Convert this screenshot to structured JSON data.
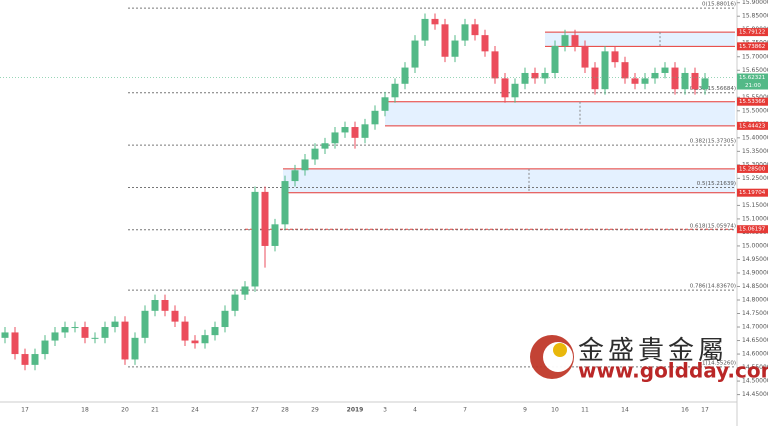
{
  "chart_data": {
    "type": "candlestick",
    "categories": [
      null,
      null,
      "17",
      null,
      null,
      null,
      null,
      null,
      "18",
      null,
      null,
      null,
      "20",
      null,
      null,
      "21",
      null,
      null,
      null,
      "24",
      null,
      null,
      null,
      null,
      null,
      "27",
      null,
      null,
      "28",
      null,
      null,
      "29",
      null,
      null,
      null,
      "2019",
      null,
      null,
      "3",
      null,
      null,
      "4",
      null,
      null,
      null,
      null,
      "7",
      null,
      null,
      null,
      null,
      null,
      "9",
      null,
      null,
      "10",
      null,
      null,
      "11",
      null,
      null,
      null,
      "14",
      null,
      null,
      null,
      null,
      null,
      "16",
      null,
      "17"
    ],
    "open": [
      14.66,
      14.68,
      14.6,
      14.56,
      14.6,
      14.65,
      14.68,
      14.7,
      14.7,
      14.66,
      14.66,
      14.7,
      14.72,
      14.58,
      14.66,
      14.76,
      14.8,
      14.76,
      14.72,
      14.65,
      14.64,
      14.67,
      14.7,
      14.76,
      14.82,
      14.85,
      15.2,
      15.0,
      15.08,
      15.24,
      15.28,
      15.32,
      15.36,
      15.38,
      15.42,
      15.44,
      15.4,
      15.45,
      15.5,
      15.55,
      15.6,
      15.66,
      15.76,
      15.84,
      15.82,
      15.7,
      15.76,
      15.82,
      15.78,
      15.72,
      15.62,
      15.55,
      15.6,
      15.64,
      15.62,
      15.64,
      15.74,
      15.78,
      15.74,
      15.66,
      15.58,
      15.72,
      15.68,
      15.62,
      15.6,
      15.62,
      15.64,
      15.66,
      15.58,
      15.64,
      15.58
    ],
    "high": [
      14.7,
      14.7,
      14.62,
      14.62,
      14.67,
      14.7,
      14.72,
      14.72,
      14.72,
      14.68,
      14.72,
      14.74,
      14.74,
      14.68,
      14.78,
      14.82,
      14.82,
      14.78,
      14.74,
      14.67,
      14.69,
      14.72,
      14.78,
      14.84,
      14.87,
      15.22,
      15.22,
      15.1,
      15.26,
      15.3,
      15.34,
      15.38,
      15.4,
      15.44,
      15.46,
      15.46,
      15.47,
      15.52,
      15.57,
      15.62,
      15.68,
      15.78,
      15.86,
      15.86,
      15.84,
      15.78,
      15.84,
      15.84,
      15.8,
      15.74,
      15.64,
      15.62,
      15.66,
      15.66,
      15.66,
      15.76,
      15.8,
      15.8,
      15.76,
      15.68,
      15.74,
      15.74,
      15.7,
      15.64,
      15.64,
      15.66,
      15.68,
      15.68,
      15.66,
      15.66,
      15.64
    ],
    "low": [
      14.64,
      14.58,
      14.54,
      14.54,
      14.58,
      14.63,
      14.66,
      14.68,
      14.64,
      14.64,
      14.64,
      14.68,
      14.56,
      14.56,
      14.64,
      14.74,
      14.74,
      14.7,
      14.63,
      14.62,
      14.62,
      14.65,
      14.68,
      14.74,
      14.8,
      14.83,
      14.92,
      14.98,
      15.06,
      15.22,
      15.26,
      15.3,
      15.34,
      15.36,
      15.4,
      15.36,
      15.38,
      15.43,
      15.48,
      15.53,
      15.58,
      15.64,
      15.74,
      15.8,
      15.68,
      15.68,
      15.74,
      15.76,
      15.7,
      15.6,
      15.53,
      15.53,
      15.58,
      15.6,
      15.6,
      15.62,
      15.72,
      15.72,
      15.64,
      15.56,
      15.56,
      15.66,
      15.6,
      15.58,
      15.58,
      15.6,
      15.62,
      15.56,
      15.56,
      15.56,
      15.56
    ],
    "close": [
      14.68,
      14.6,
      14.56,
      14.6,
      14.65,
      14.68,
      14.7,
      14.7,
      14.66,
      14.66,
      14.7,
      14.72,
      14.58,
      14.66,
      14.76,
      14.8,
      14.76,
      14.72,
      14.65,
      14.64,
      14.67,
      14.7,
      14.76,
      14.82,
      14.85,
      15.2,
      15.0,
      15.08,
      15.24,
      15.28,
      15.32,
      15.36,
      15.38,
      15.42,
      15.44,
      15.4,
      15.45,
      15.5,
      15.55,
      15.6,
      15.66,
      15.76,
      15.84,
      15.82,
      15.7,
      15.76,
      15.82,
      15.78,
      15.72,
      15.62,
      15.55,
      15.6,
      15.64,
      15.62,
      15.64,
      15.74,
      15.78,
      15.74,
      15.66,
      15.58,
      15.72,
      15.68,
      15.62,
      15.6,
      15.62,
      15.64,
      15.66,
      15.58,
      15.64,
      15.58,
      15.62
    ],
    "up_color": "#53b987",
    "down_color": "#eb4d5c",
    "ylim": [
      14.43,
      15.91
    ],
    "yticks": [
      {
        "value": 15.9,
        "label": "15.90000"
      },
      {
        "value": 15.85,
        "label": "15.85000"
      },
      {
        "value": 15.8,
        "label": "15.80000"
      },
      {
        "value": 15.75,
        "label": "15.75000"
      },
      {
        "value": 15.7,
        "label": "15.70000"
      },
      {
        "value": 15.65,
        "label": "15.65000"
      },
      {
        "value": 15.6,
        "label": "15.60000"
      },
      {
        "value": 15.55,
        "label": "15.55000"
      },
      {
        "value": 15.5,
        "label": "15.50000"
      },
      {
        "value": 15.45,
        "label": "15.45000"
      },
      {
        "value": 15.4,
        "label": "15.40000"
      },
      {
        "value": 15.35,
        "label": "15.35000"
      },
      {
        "value": 15.3,
        "label": "15.30000"
      },
      {
        "value": 15.25,
        "label": "15.25000"
      },
      {
        "value": 15.2,
        "label": "15.20000"
      },
      {
        "value": 15.15,
        "label": "15.15000"
      },
      {
        "value": 15.1,
        "label": "15.10000"
      },
      {
        "value": 15.05,
        "label": "15.05000"
      },
      {
        "value": 15.0,
        "label": "15.00000"
      },
      {
        "value": 14.95,
        "label": "14.95000"
      },
      {
        "value": 14.9,
        "label": "14.90000"
      },
      {
        "value": 14.85,
        "label": "14.85000"
      },
      {
        "value": 14.8,
        "label": "14.80000"
      },
      {
        "value": 14.75,
        "label": "14.75000"
      },
      {
        "value": 14.7,
        "label": "14.70000"
      },
      {
        "value": 14.65,
        "label": "14.65000"
      },
      {
        "value": 14.6,
        "label": "14.60000"
      },
      {
        "value": 14.55,
        "label": "14.55000"
      },
      {
        "value": 14.5,
        "label": "14.50000"
      },
      {
        "value": 14.45,
        "label": "14.45000"
      }
    ],
    "fib_levels": [
      {
        "value": 15.88016,
        "label": "0(15.88016)"
      },
      {
        "value": 15.56684,
        "label": "0.236(15.56684)"
      },
      {
        "value": 15.37305,
        "label": "0.382(15.37305)"
      },
      {
        "value": 15.21639,
        "label": "0.5(15.21639)"
      },
      {
        "value": 15.05974,
        "label": "0.618(15.05974)"
      },
      {
        "value": 14.8367,
        "label": "0.786(14.83670)"
      },
      {
        "value": 14.5526,
        "label": "1(14.55260)"
      }
    ],
    "zones": [
      {
        "top": 15.79122,
        "bottom": 15.73862
      },
      {
        "top": 15.53366,
        "bottom": 15.44423
      },
      {
        "top": {
          "value": 15.285,
          "label": "15.28500"
        },
        "bottom": 15.19704
      }
    ],
    "red_line": 15.06197,
    "last_price": 15.62321,
    "last_color": "#53b987",
    "countdown": "21:00",
    "watermark": {
      "name": "金盛貴金屬",
      "url": "www.goldday.com"
    }
  }
}
